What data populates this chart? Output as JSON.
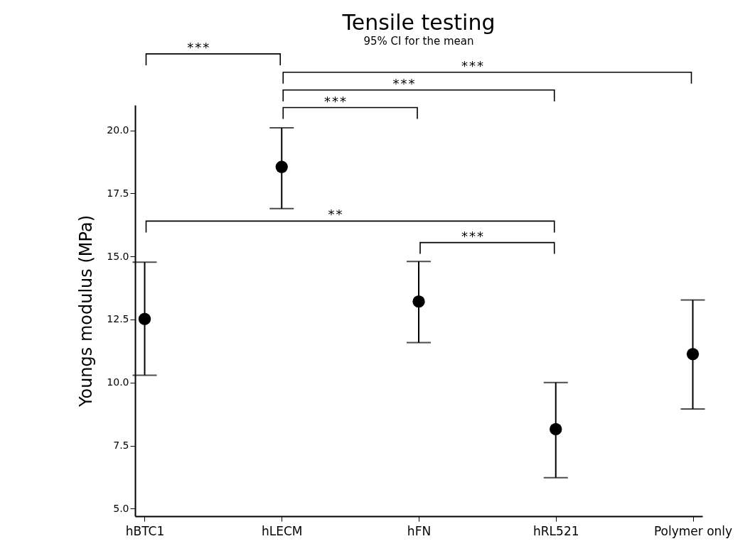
{
  "chart_data": {
    "type": "scatter",
    "title": "Tensile testing",
    "subtitle": "95% CI for the mean",
    "ylabel": "Youngs modulus (MPa)",
    "categories": [
      "hBTC1",
      "hLECM",
      "hFN",
      "hRL521",
      "Polymer only"
    ],
    "series": [
      {
        "color": "#000000",
        "values": [
          12.52,
          18.55,
          13.21,
          8.15,
          11.13
        ],
        "errors": [
          [
            10.29,
            14.77
          ],
          [
            16.9,
            20.1
          ],
          [
            11.58,
            14.8
          ],
          [
            6.23,
            10.0
          ],
          [
            8.95,
            13.27
          ]
        ]
      }
    ],
    "marker": "circle",
    "ylim": [
      4.7,
      21
    ],
    "yticks": [
      {
        "value": 5,
        "label": "5.0"
      },
      7.5,
      {
        "value": 10,
        "label": "10.0"
      },
      12.5,
      {
        "value": 15,
        "label": "15.0"
      },
      17.5,
      {
        "value": 20,
        "label": "20.0"
      }
    ],
    "grid": false,
    "annotations": [
      "***",
      "***",
      "***",
      "***",
      "**",
      "***"
    ]
  }
}
